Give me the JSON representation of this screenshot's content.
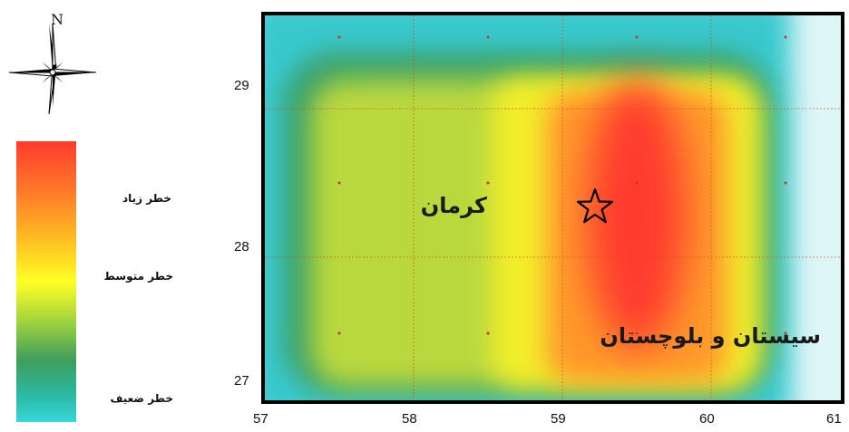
{
  "north_arrow": {
    "label": "N",
    "icon": "compass-rose-icon"
  },
  "legend": {
    "labels": {
      "high": "خطر زیاد",
      "medium": "خطر متوسط",
      "low": "خطر ضعیف"
    },
    "colors": [
      "#ff3b2f",
      "#ffb522",
      "#ffff25",
      "#3e9e5c",
      "#36d6dc"
    ]
  },
  "map": {
    "x_ticks": [
      "57",
      "58",
      "59",
      "60",
      "61"
    ],
    "y_ticks": [
      "29",
      "28",
      "27"
    ],
    "place_labels": {
      "kerman": "کرمان",
      "sistan": "سیستان و بلوچستان"
    },
    "marker": "star-icon"
  }
}
